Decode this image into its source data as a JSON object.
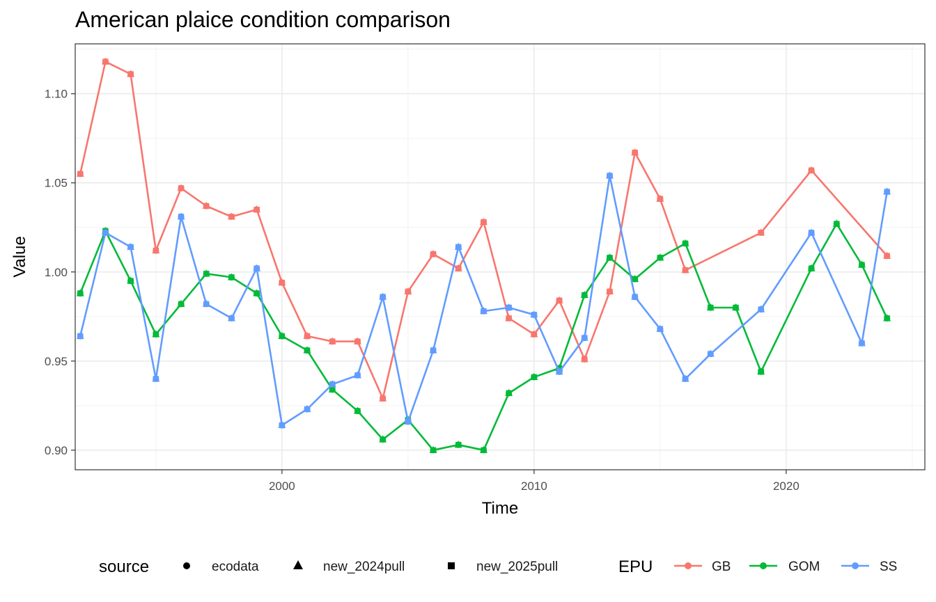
{
  "chart_data": {
    "type": "line",
    "title": "American plaice condition comparison",
    "xlabel": "Time",
    "ylabel": "Value",
    "xlim": [
      1991.8,
      2025.5
    ],
    "ylim": [
      0.889,
      1.128
    ],
    "x_ticks": [
      2000,
      2010,
      2020
    ],
    "y_ticks": [
      0.9,
      0.95,
      1.0,
      1.05,
      1.1
    ],
    "y_tick_labels": [
      "0.90",
      "0.95",
      "1.00",
      "1.05",
      "1.10"
    ],
    "grid": true,
    "legend_position": "bottom",
    "legends": {
      "source": {
        "title": "source",
        "items": [
          {
            "label": "ecodata",
            "shape": "circle"
          },
          {
            "label": "new_2024pull",
            "shape": "triangle"
          },
          {
            "label": "new_2025pull",
            "shape": "square"
          }
        ]
      },
      "epu": {
        "title": "EPU",
        "items": [
          {
            "label": "GB",
            "color": "#F8766D"
          },
          {
            "label": "GOM",
            "color": "#00BA38"
          },
          {
            "label": "SS",
            "color": "#619CFF"
          }
        ]
      }
    },
    "series": [
      {
        "name": "GB",
        "color": "#F8766D",
        "x": [
          1992,
          1993,
          1994,
          1995,
          1996,
          1997,
          1998,
          1999,
          2000,
          2001,
          2002,
          2003,
          2004,
          2005,
          2006,
          2007,
          2008,
          2009,
          2010,
          2011,
          2012,
          2013,
          2014,
          2015,
          2016,
          2019,
          2021,
          2024
        ],
        "y": [
          1.055,
          1.118,
          1.111,
          1.012,
          1.047,
          1.037,
          1.031,
          1.035,
          0.994,
          0.964,
          0.961,
          0.961,
          0.929,
          0.989,
          1.01,
          1.002,
          1.028,
          0.974,
          0.965,
          0.984,
          0.951,
          0.989,
          1.067,
          1.041,
          1.001,
          1.022,
          1.057,
          1.009
        ]
      },
      {
        "name": "GOM",
        "color": "#00BA38",
        "x": [
          1992,
          1993,
          1994,
          1995,
          1996,
          1997,
          1998,
          1999,
          2000,
          2001,
          2002,
          2003,
          2004,
          2005,
          2006,
          2007,
          2008,
          2009,
          2010,
          2011,
          2012,
          2013,
          2014,
          2015,
          2016,
          2017,
          2018,
          2019,
          2021,
          2022,
          2023,
          2024
        ],
        "y": [
          0.988,
          1.023,
          0.995,
          0.965,
          0.982,
          0.999,
          0.997,
          0.988,
          0.964,
          0.956,
          0.934,
          0.922,
          0.906,
          0.917,
          0.9,
          0.903,
          0.9,
          0.932,
          0.941,
          0.946,
          0.987,
          1.008,
          0.996,
          1.008,
          1.016,
          0.98,
          0.98,
          0.944,
          1.002,
          1.027,
          1.004,
          0.974
        ]
      },
      {
        "name": "SS",
        "color": "#619CFF",
        "x": [
          1992,
          1993,
          1994,
          1995,
          1996,
          1997,
          1998,
          1999,
          2000,
          2001,
          2002,
          2003,
          2004,
          2005,
          2006,
          2007,
          2008,
          2009,
          2010,
          2011,
          2012,
          2013,
          2014,
          2015,
          2016,
          2017,
          2019,
          2021,
          2023,
          2024
        ],
        "y": [
          0.964,
          1.022,
          1.014,
          0.94,
          1.031,
          0.982,
          0.974,
          1.002,
          0.914,
          0.923,
          0.937,
          0.942,
          0.986,
          0.916,
          0.956,
          1.014,
          0.978,
          0.98,
          0.976,
          0.944,
          0.963,
          1.054,
          0.986,
          0.968,
          0.94,
          0.954,
          0.979,
          1.022,
          0.96,
          1.045
        ]
      }
    ]
  }
}
